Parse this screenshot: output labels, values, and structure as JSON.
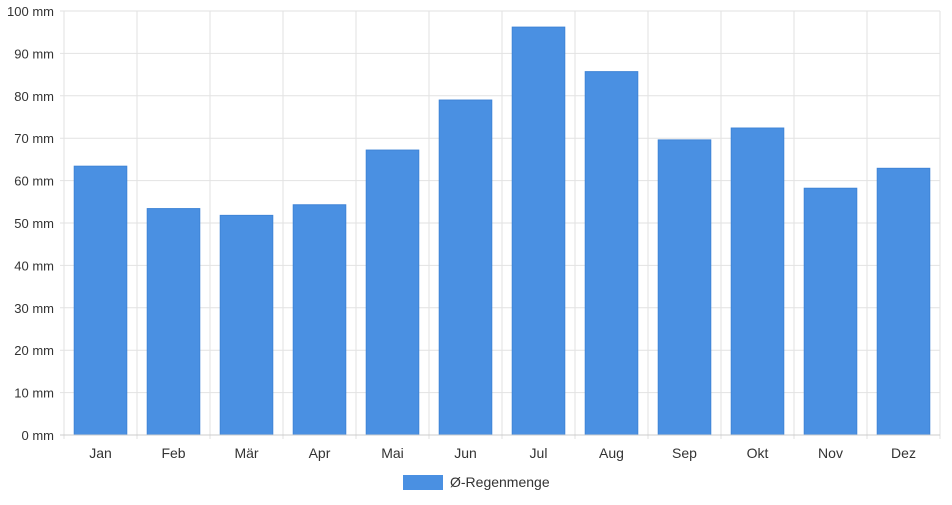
{
  "chart_data": {
    "type": "bar",
    "categories": [
      "Jan",
      "Feb",
      "Mär",
      "Apr",
      "Mai",
      "Jun",
      "Jul",
      "Aug",
      "Sep",
      "Okt",
      "Nov",
      "Dez"
    ],
    "series": [
      {
        "name": "Ø-Regenmenge",
        "values": [
          63.4,
          53.4,
          51.8,
          54.3,
          67.2,
          79.0,
          96.2,
          85.7,
          69.6,
          72.4,
          58.2,
          62.9
        ],
        "color": "#4a90e2"
      }
    ],
    "y_unit": "mm",
    "ylim": [
      0,
      100
    ],
    "yticks": [
      0,
      10,
      20,
      30,
      40,
      50,
      60,
      70,
      80,
      90,
      100
    ],
    "grid": true,
    "legend": "bottom-center"
  }
}
